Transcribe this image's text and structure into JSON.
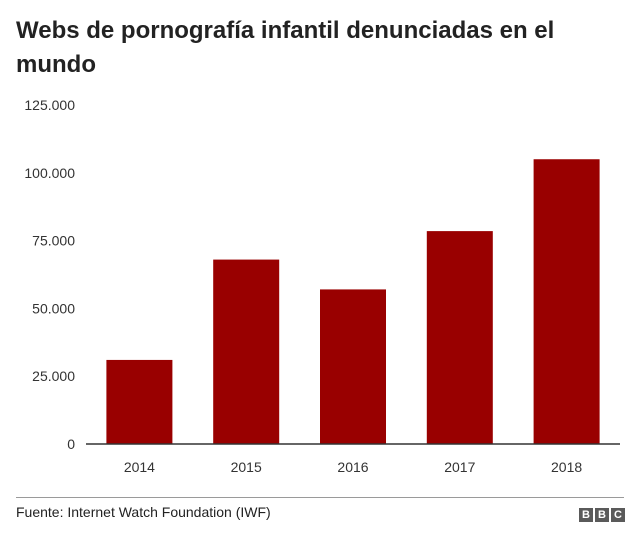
{
  "chart_data": {
    "type": "bar",
    "title": "Webs de pornografía infantil denunciadas en el mundo",
    "categories": [
      "2014",
      "2015",
      "2016",
      "2017",
      "2018"
    ],
    "values": [
      31000,
      68000,
      57000,
      78500,
      105000
    ],
    "yticks": [
      0,
      25000,
      50000,
      75000,
      100000,
      125000
    ],
    "ytick_labels": [
      "0",
      "25.000",
      "50.000",
      "75.000",
      "100.000",
      "125.000"
    ],
    "ylim": [
      0,
      125000
    ],
    "xlabel": "",
    "ylabel": "",
    "grid": false,
    "legend": "none",
    "bar_color": "#990000"
  },
  "source": "Fuente: Internet Watch Foundation (IWF)",
  "logo": [
    "B",
    "B",
    "C"
  ]
}
